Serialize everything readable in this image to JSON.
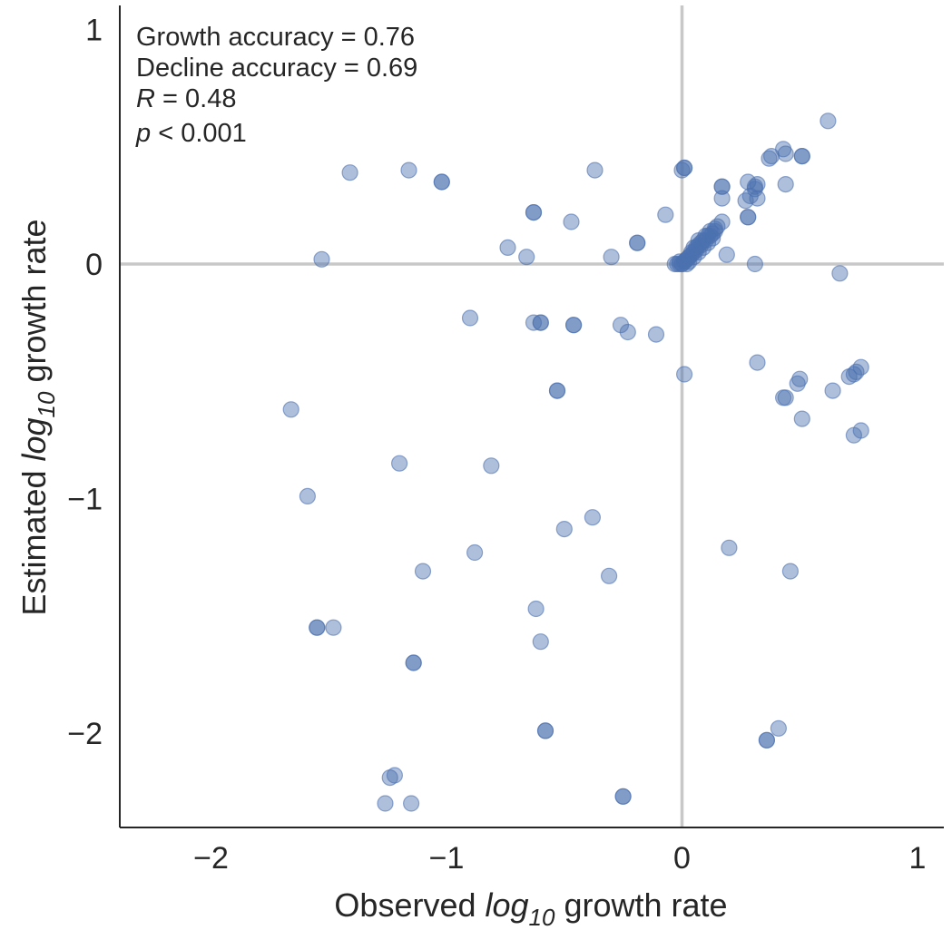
{
  "chart_data": {
    "type": "scatter",
    "xlabel": {
      "pre": "Observed ",
      "log": "log",
      "sub": "10",
      "post": " growth rate"
    },
    "ylabel": {
      "pre": "Estimated ",
      "log": "log",
      "sub": "10",
      "post": " growth rate"
    },
    "xlim": [
      -2.4,
      1.12
    ],
    "ylim": [
      -2.42,
      1.12
    ],
    "xticks": [
      -2,
      -1,
      0,
      1
    ],
    "xtick_labels": [
      "−2",
      "−1",
      "0",
      "1"
    ],
    "yticks": [
      -2,
      -1,
      0,
      1
    ],
    "ytick_labels": [
      "−2",
      "−1",
      "0",
      "1"
    ],
    "reference_lines": {
      "x": 0,
      "y": 0,
      "color": "#c8c8c8"
    },
    "grid": false,
    "marker_color": "#4c72b0",
    "marker_alpha": 0.45,
    "annotations": {
      "growth_accuracy": "Growth accuracy = 0.76",
      "decline_accuracy": "Decline accuracy = 0.69",
      "r_symbol": "R",
      "r_value": " = 0.48",
      "p_symbol": "p",
      "p_value": " < 0.001"
    },
    "points": [
      [
        -1.41,
        0.39
      ],
      [
        -1.16,
        0.4
      ],
      [
        -1.02,
        0.35
      ],
      [
        -1.02,
        0.35
      ],
      [
        -1.53,
        0.02
      ],
      [
        -0.74,
        0.07
      ],
      [
        -0.66,
        0.03
      ],
      [
        -0.63,
        0.22
      ],
      [
        -0.63,
        0.22
      ],
      [
        -0.47,
        0.18
      ],
      [
        -0.37,
        0.4
      ],
      [
        -0.3,
        0.03
      ],
      [
        -0.19,
        0.09
      ],
      [
        -0.19,
        0.09
      ],
      [
        -0.07,
        0.21
      ],
      [
        0.01,
        0.41
      ],
      [
        0.01,
        0.41
      ],
      [
        0.0,
        0.4
      ],
      [
        -0.9,
        -0.23
      ],
      [
        -0.63,
        -0.25
      ],
      [
        -0.6,
        -0.25
      ],
      [
        -0.6,
        -0.25
      ],
      [
        -0.46,
        -0.26
      ],
      [
        -0.46,
        -0.26
      ],
      [
        -0.26,
        -0.26
      ],
      [
        -0.23,
        -0.29
      ],
      [
        -0.11,
        -0.3
      ],
      [
        0.01,
        -0.47
      ],
      [
        -0.53,
        -0.54
      ],
      [
        -0.53,
        -0.54
      ],
      [
        -1.66,
        -0.62
      ],
      [
        -1.2,
        -0.85
      ],
      [
        -0.81,
        -0.86
      ],
      [
        -1.59,
        -0.99
      ],
      [
        -0.38,
        -1.08
      ],
      [
        -0.5,
        -1.13
      ],
      [
        -0.88,
        -1.23
      ],
      [
        -1.1,
        -1.31
      ],
      [
        -0.31,
        -1.33
      ],
      [
        -0.62,
        -1.47
      ],
      [
        -1.55,
        -1.55
      ],
      [
        -1.55,
        -1.55
      ],
      [
        -1.48,
        -1.55
      ],
      [
        -0.6,
        -1.61
      ],
      [
        -1.14,
        -1.7
      ],
      [
        -1.14,
        -1.7
      ],
      [
        -0.58,
        -1.99
      ],
      [
        -0.58,
        -1.99
      ],
      [
        -1.24,
        -2.19
      ],
      [
        -1.22,
        -2.18
      ],
      [
        -1.26,
        -2.3
      ],
      [
        -1.15,
        -2.3
      ],
      [
        -0.25,
        -2.27
      ],
      [
        -0.25,
        -2.27
      ],
      [
        0.2,
        -1.21
      ],
      [
        0.46,
        -1.31
      ],
      [
        0.41,
        -1.98
      ],
      [
        0.36,
        -2.03
      ],
      [
        0.36,
        -2.03
      ],
      [
        0.32,
        -0.42
      ],
      [
        0.43,
        -0.57
      ],
      [
        0.44,
        -0.57
      ],
      [
        0.49,
        -0.51
      ],
      [
        0.5,
        -0.49
      ],
      [
        0.51,
        -0.66
      ],
      [
        0.64,
        -0.54
      ],
      [
        0.71,
        -0.48
      ],
      [
        0.73,
        -0.47
      ],
      [
        0.74,
        -0.46
      ],
      [
        0.76,
        -0.44
      ],
      [
        0.73,
        -0.73
      ],
      [
        0.76,
        -0.71
      ],
      [
        0.31,
        0.0
      ],
      [
        0.67,
        -0.04
      ],
      [
        0.62,
        0.61
      ],
      [
        0.43,
        0.49
      ],
      [
        0.44,
        0.47
      ],
      [
        0.37,
        0.45
      ],
      [
        0.38,
        0.46
      ],
      [
        0.51,
        0.46
      ],
      [
        0.51,
        0.46
      ],
      [
        0.44,
        0.34
      ],
      [
        0.28,
        0.35
      ],
      [
        0.29,
        0.29
      ],
      [
        0.31,
        0.33
      ],
      [
        0.32,
        0.34
      ],
      [
        0.31,
        0.32
      ],
      [
        0.32,
        0.28
      ],
      [
        0.27,
        0.27
      ],
      [
        0.28,
        0.2
      ],
      [
        0.28,
        0.2
      ],
      [
        0.17,
        0.33
      ],
      [
        0.17,
        0.33
      ],
      [
        0.17,
        0.28
      ],
      [
        0.17,
        0.18
      ],
      [
        0.19,
        0.04
      ],
      [
        0.15,
        0.16
      ],
      [
        0.14,
        0.14
      ],
      [
        0.13,
        0.13
      ],
      [
        0.12,
        0.12
      ],
      [
        0.11,
        0.12
      ],
      [
        0.1,
        0.1
      ],
      [
        0.09,
        0.1
      ],
      [
        0.08,
        0.09
      ],
      [
        0.08,
        0.08
      ],
      [
        0.07,
        0.08
      ],
      [
        0.06,
        0.07
      ],
      [
        0.06,
        0.06
      ],
      [
        0.05,
        0.05
      ],
      [
        0.04,
        0.05
      ],
      [
        0.04,
        0.04
      ],
      [
        0.03,
        0.03
      ],
      [
        0.03,
        0.03
      ],
      [
        0.02,
        0.02
      ],
      [
        0.02,
        0.02
      ],
      [
        0.01,
        0.01
      ],
      [
        0.01,
        0.01
      ],
      [
        0.0,
        0.0
      ],
      [
        0.0,
        0.0
      ],
      [
        -0.01,
        0.0
      ],
      [
        -0.02,
        0.0
      ],
      [
        -0.03,
        0.0
      ],
      [
        -0.01,
        0.01
      ],
      [
        0.02,
        0.0
      ],
      [
        0.03,
        0.01
      ],
      [
        0.05,
        0.03
      ],
      [
        0.07,
        0.05
      ],
      [
        0.09,
        0.07
      ],
      [
        0.11,
        0.09
      ],
      [
        0.13,
        0.11
      ],
      [
        0.05,
        0.07
      ],
      [
        0.07,
        0.1
      ],
      [
        0.1,
        0.12
      ],
      [
        0.12,
        0.14
      ],
      [
        0.14,
        0.15
      ]
    ]
  }
}
